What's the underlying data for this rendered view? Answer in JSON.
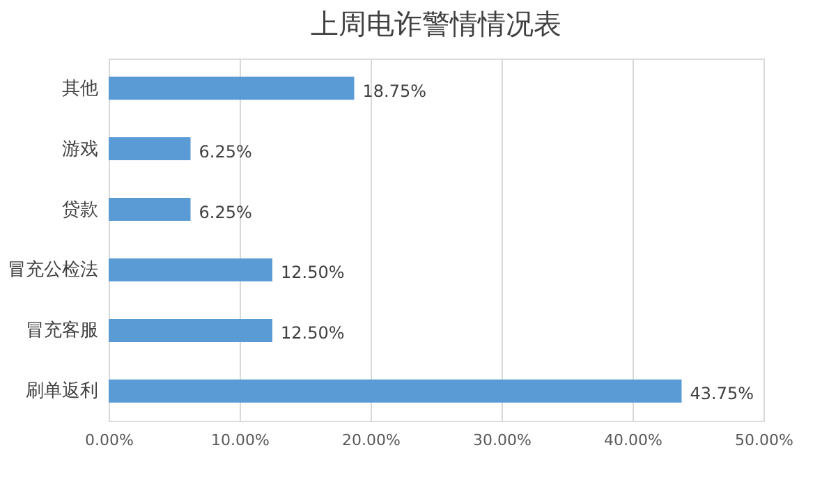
{
  "chart_data": {
    "type": "bar",
    "title": "上周电诈警情情况表",
    "orientation": "horizontal",
    "categories": [
      "其他",
      "游戏",
      "贷款",
      "冒充公检法",
      "冒充客服",
      "刷单返利"
    ],
    "values": [
      18.75,
      6.25,
      6.25,
      12.5,
      12.5,
      43.75
    ],
    "value_labels": [
      "18.75%",
      "6.25%",
      "6.25%",
      "12.50%",
      "12.50%",
      "43.75%"
    ],
    "color": "#5b9bd5",
    "xlim": [
      0,
      50
    ],
    "xticks": [
      {
        "value": 0,
        "label": "0.00%"
      },
      {
        "value": 10,
        "label": "10.00%"
      },
      {
        "value": 20,
        "label": "20.00%"
      },
      {
        "value": 30,
        "label": "30.00%"
      },
      {
        "value": 40,
        "label": "40.00%"
      },
      {
        "value": 50,
        "label": "50.00%"
      }
    ],
    "grid": "x"
  }
}
